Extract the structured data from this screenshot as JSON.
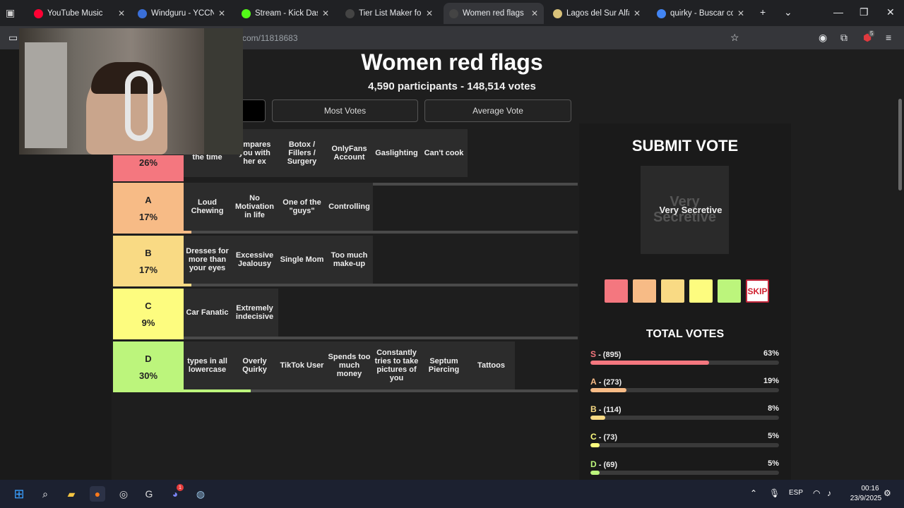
{
  "browser": {
    "tabs": [
      {
        "title": "YouTube Music",
        "favicon_color": "#ff0033"
      },
      {
        "title": "Windguru - YCCN, YC",
        "favicon_color": "#3a6fd8"
      },
      {
        "title": "Stream - Kick Dashbo",
        "favicon_color": "#53fc18"
      },
      {
        "title": "Tier List Maker for Eve",
        "favicon_color": "#444444"
      },
      {
        "title": "Women red flags",
        "favicon_color": "#444444",
        "active": true
      },
      {
        "title": "Lagos del Sur Alfajor c",
        "favicon_color": "#d9c27a"
      },
      {
        "title": "quirky - Buscar con Go",
        "favicon_color": "#4285f4"
      }
    ],
    "url": "com/11818683",
    "extension_badge": "5"
  },
  "page": {
    "title": "Women red flags",
    "subtitle": "4,590 participants - 148,514 votes",
    "sort_buttons": [
      "Most Votes",
      "Average Vote"
    ]
  },
  "tiers": [
    {
      "letter": "",
      "percent": "26%",
      "color": "#f4777f",
      "fill": 0.13,
      "items": [
        "phone all the time",
        "ompares you with her ex",
        "Botox / Fillers / Surgery",
        "OnlyFans Account",
        "Gaslighting",
        "Can't cook"
      ]
    },
    {
      "letter": "A",
      "percent": "17%",
      "color": "#f7bb86",
      "fill": 0.02,
      "items": [
        "Loud Chewing",
        "No Motivation in life",
        "One of the \"guys\"",
        "Controlling"
      ]
    },
    {
      "letter": "B",
      "percent": "17%",
      "color": "#f9da84",
      "fill": 0.02,
      "items": [
        "Dresses for more than your eyes",
        "Excessive Jealousy",
        "Single Mom",
        "Too much make-up"
      ]
    },
    {
      "letter": "C",
      "percent": "9%",
      "color": "#fdfc7f",
      "fill": 0.0,
      "items": [
        "Car Fanatic",
        "Extremely indecisive"
      ]
    },
    {
      "letter": "D",
      "percent": "30%",
      "color": "#bcf57c",
      "fill": 0.17,
      "items": [
        "types in all lowercase",
        "Overly Quirky",
        "TikTok User",
        "Spends too much money",
        "Constantly tries to take pictures of you",
        "Septum Piercing",
        "Tattoos"
      ]
    }
  ],
  "vote": {
    "title": "SUBMIT VOTE",
    "card_ghost": "Very Secretive",
    "card_text": "Very Secretive",
    "buttons": [
      {
        "name": "s",
        "color": "#f4777f"
      },
      {
        "name": "a",
        "color": "#f7bb86"
      },
      {
        "name": "b",
        "color": "#f9da84"
      },
      {
        "name": "c",
        "color": "#fdfc7f"
      },
      {
        "name": "d",
        "color": "#bcf57c"
      }
    ],
    "skip_label": "SKIP"
  },
  "totals": {
    "title": "TOTAL VOTES",
    "rows": [
      {
        "letter": "S",
        "count": " - (895)",
        "percent": "63%",
        "fraction": 0.63,
        "color": "#f4777f"
      },
      {
        "letter": "A",
        "count": " - (273)",
        "percent": "19%",
        "fraction": 0.19,
        "color": "#f7bb86"
      },
      {
        "letter": "B",
        "count": " - (114)",
        "percent": "8%",
        "fraction": 0.08,
        "color": "#f9da84"
      },
      {
        "letter": "C",
        "count": " - (73)",
        "percent": "5%",
        "fraction": 0.05,
        "color": "#fdfc7f"
      },
      {
        "letter": "D",
        "count": " - (69)",
        "percent": "5%",
        "fraction": 0.05,
        "color": "#bcf57c"
      }
    ]
  },
  "taskbar": {
    "lang": "ESP",
    "time": "00:16",
    "date": "23/9/2025",
    "discord_badge": "1"
  }
}
